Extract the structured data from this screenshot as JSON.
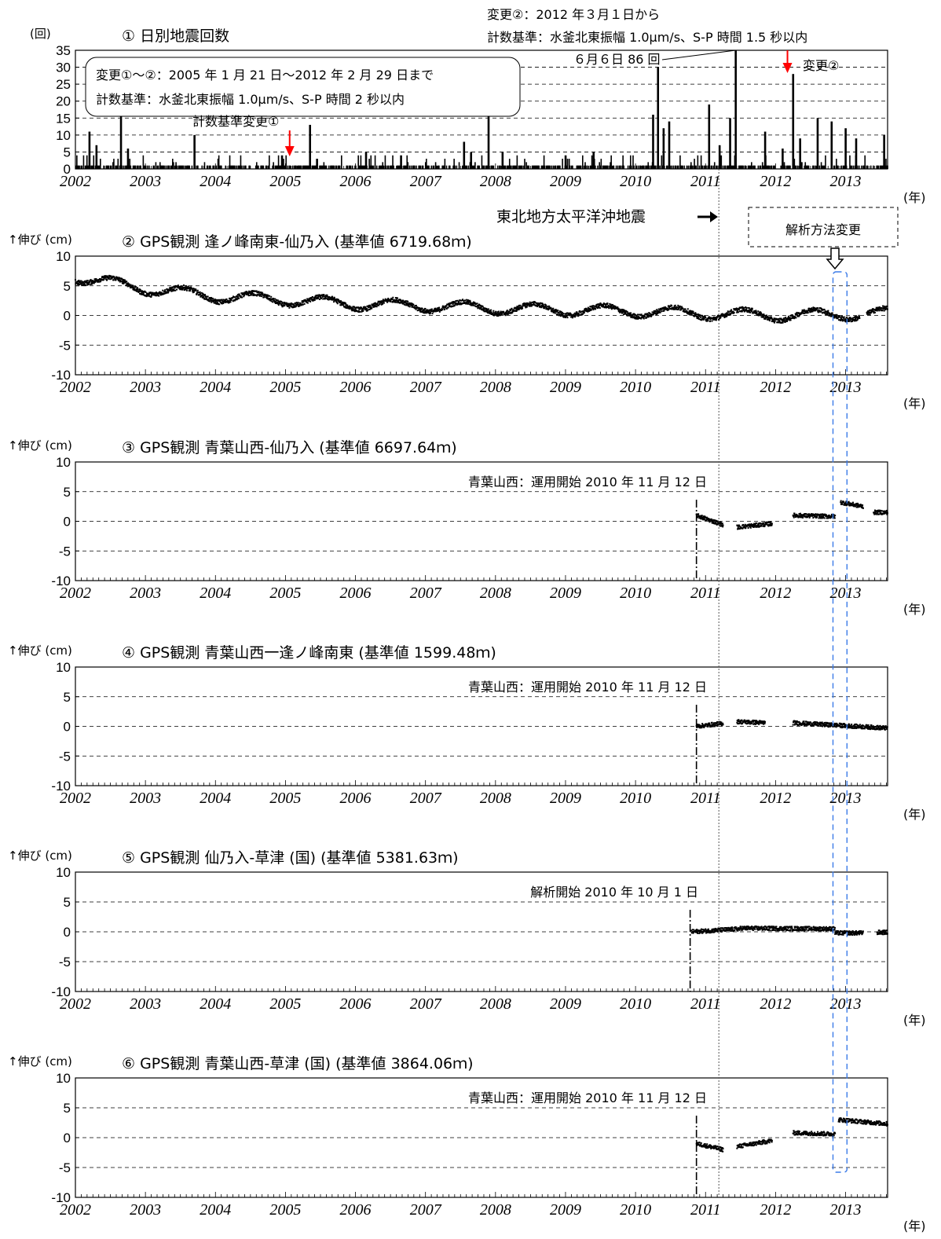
{
  "colors": {
    "axis": "#000000",
    "grid": "#000000",
    "data": "#000000",
    "arrow_red": "#ff0000",
    "analysis_box": "#3b7be8",
    "quake_line": "#555555"
  },
  "year_axis_label": "(年)",
  "quake_label": "東北地方太平洋沖地震",
  "analysis_change_label": "解析方法変更",
  "chart_data": [
    {
      "type": "bar",
      "title": "① 日別地震回数",
      "ylabel": "(回)",
      "xlim": [
        2002,
        2013.6
      ],
      "ylim": [
        0,
        35
      ],
      "yticks": [
        0,
        5,
        10,
        15,
        20,
        25,
        30,
        35
      ],
      "xticks": [
        2002,
        2003,
        2004,
        2005,
        2006,
        2007,
        2008,
        2009,
        2010,
        2011,
        2012,
        2013
      ],
      "baseline_count": 1,
      "spikes": [
        {
          "x": 2002.2,
          "y": 11
        },
        {
          "x": 2002.3,
          "y": 7
        },
        {
          "x": 2002.65,
          "y": 18
        },
        {
          "x": 2002.75,
          "y": 6
        },
        {
          "x": 2003.7,
          "y": 10
        },
        {
          "x": 2004.95,
          "y": 4
        },
        {
          "x": 2005.35,
          "y": 13
        },
        {
          "x": 2005.45,
          "y": 3
        },
        {
          "x": 2006.15,
          "y": 5
        },
        {
          "x": 2006.65,
          "y": 4
        },
        {
          "x": 2007.55,
          "y": 8
        },
        {
          "x": 2007.65,
          "y": 5
        },
        {
          "x": 2007.9,
          "y": 22
        },
        {
          "x": 2008.1,
          "y": 5
        },
        {
          "x": 2009.0,
          "y": 4
        },
        {
          "x": 2009.4,
          "y": 5
        },
        {
          "x": 2010.25,
          "y": 16
        },
        {
          "x": 2010.32,
          "y": 32
        },
        {
          "x": 2010.4,
          "y": 12
        },
        {
          "x": 2010.48,
          "y": 14
        },
        {
          "x": 2011.05,
          "y": 19
        },
        {
          "x": 2011.2,
          "y": 7
        },
        {
          "x": 2011.35,
          "y": 15
        },
        {
          "x": 2011.43,
          "y": 35
        },
        {
          "x": 2011.85,
          "y": 11
        },
        {
          "x": 2012.1,
          "y": 6
        },
        {
          "x": 2012.25,
          "y": 28
        },
        {
          "x": 2012.35,
          "y": 9
        },
        {
          "x": 2012.6,
          "y": 15
        },
        {
          "x": 2012.8,
          "y": 14
        },
        {
          "x": 2013.0,
          "y": 12
        },
        {
          "x": 2013.15,
          "y": 9
        },
        {
          "x": 2013.55,
          "y": 10
        }
      ],
      "annotations": {
        "box_line1": "変更①～②：2005 年 1 月 21 日～2012 年 2 月 29 日まで",
        "box_line2": "計数基準：水釜北東振幅 1.0μm/s、S-P 時間 2 秒以内",
        "change1_label": "計数基準変更①",
        "change1_x": 2005.06,
        "change2_label": "変更②",
        "change2_x": 2012.17,
        "top_line1": "変更②：2012 年３月１日から",
        "top_line2": "計数基準：水釜北東振幅 1.0μm/s、S-P 時間 1.5 秒以内",
        "peak_label": "６月６日 86 回",
        "peak_x": 2011.43
      }
    },
    {
      "type": "scatter",
      "title": "② GPS観測 逢ノ峰南東-仙乃入 (基準値 6719.68ｍ)",
      "ylabel": "↑伸び (cm)",
      "xlim": [
        2002,
        2013.6
      ],
      "ylim": [
        -10,
        10
      ],
      "yticks": [
        -10,
        -5,
        0,
        5,
        10
      ],
      "start": 2002.0,
      "end": 2013.6,
      "trend_points": [
        [
          2002.0,
          6.5
        ],
        [
          2003.0,
          4.5
        ],
        [
          2004.0,
          3.2
        ],
        [
          2005.0,
          2.6
        ],
        [
          2006.0,
          1.9
        ],
        [
          2007.0,
          1.6
        ],
        [
          2008.0,
          1.2
        ],
        [
          2009.0,
          0.9
        ],
        [
          2010.0,
          0.7
        ],
        [
          2011.0,
          0.3
        ],
        [
          2012.0,
          0.0
        ],
        [
          2013.6,
          0.3
        ]
      ],
      "seasonal_amplitude": 0.9,
      "gaps": [
        [
          2013.2,
          2013.3
        ]
      ],
      "annotation": "",
      "onset_x": null
    },
    {
      "type": "scatter",
      "title": "③ GPS観測 青葉山西-仙乃入 (基準値 6697.64ｍ)",
      "ylabel": "↑伸び (cm)",
      "xlim": [
        2002,
        2013.6
      ],
      "ylim": [
        -10,
        10
      ],
      "yticks": [
        -10,
        -5,
        0,
        5,
        10
      ],
      "segments": [
        {
          "from": 2010.87,
          "to": 2011.25,
          "y0": 1.0,
          "y1": -0.6
        },
        {
          "from": 2011.45,
          "to": 2011.95,
          "y0": -1.0,
          "y1": -0.4
        },
        {
          "from": 2012.25,
          "to": 2012.85,
          "y0": 1.0,
          "y1": 0.8
        },
        {
          "from": 2012.93,
          "to": 2013.25,
          "y0": 3.2,
          "y1": 2.5
        },
        {
          "from": 2013.4,
          "to": 2013.6,
          "y0": 1.5,
          "y1": 1.5
        }
      ],
      "annotation": "青葉山西：運用開始 2010 年 11 月 12 日",
      "onset_x": 2010.87
    },
    {
      "type": "scatter",
      "title": "④ GPS観測 青葉山西一逢ノ峰南東 (基準値 1599.48ｍ)",
      "ylabel": "↑伸び (cm)",
      "xlim": [
        2002,
        2013.6
      ],
      "ylim": [
        -10,
        10
      ],
      "yticks": [
        -10,
        -5,
        0,
        5,
        10
      ],
      "segments": [
        {
          "from": 2010.87,
          "to": 2011.25,
          "y0": 0.0,
          "y1": 0.5
        },
        {
          "from": 2011.45,
          "to": 2011.85,
          "y0": 0.8,
          "y1": 0.6
        },
        {
          "from": 2012.25,
          "to": 2013.6,
          "y0": 0.6,
          "y1": -0.3
        }
      ],
      "annotation": "青葉山西：運用開始 2010 年 11 月 12 日",
      "onset_x": 2010.87
    },
    {
      "type": "scatter",
      "title": "⑤ GPS観測 仙乃入-草津 (国) (基準値 5381.63ｍ)",
      "ylabel": "↑伸び (cm)",
      "xlim": [
        2002,
        2013.6
      ],
      "ylim": [
        -10,
        10
      ],
      "yticks": [
        -10,
        -5,
        0,
        5,
        10
      ],
      "segments": [
        {
          "from": 2010.8,
          "to": 2011.5,
          "y0": 0.0,
          "y1": 0.5
        },
        {
          "from": 2011.5,
          "to": 2012.85,
          "y0": 0.6,
          "y1": 0.5
        },
        {
          "from": 2012.85,
          "to": 2013.25,
          "y0": -0.2,
          "y1": -0.2
        },
        {
          "from": 2013.45,
          "to": 2013.6,
          "y0": -0.1,
          "y1": -0.1
        }
      ],
      "annotation": "解析開始 2010 年 10 月 1 日",
      "onset_x": 2010.78
    },
    {
      "type": "scatter",
      "title": "⑥ GPS観測 青葉山西-草津 (国) (基準値 3864.06ｍ)",
      "ylabel": "↑伸び (cm)",
      "xlim": [
        2002,
        2013.6
      ],
      "ylim": [
        -10,
        10
      ],
      "yticks": [
        -10,
        -5,
        0,
        5,
        10
      ],
      "segments": [
        {
          "from": 2010.87,
          "to": 2011.25,
          "y0": -1.0,
          "y1": -2.0
        },
        {
          "from": 2011.45,
          "to": 2011.95,
          "y0": -1.5,
          "y1": -0.5
        },
        {
          "from": 2012.25,
          "to": 2012.85,
          "y0": 0.8,
          "y1": 0.6
        },
        {
          "from": 2012.9,
          "to": 2013.6,
          "y0": 3.0,
          "y1": 2.3
        }
      ],
      "annotation": "青葉山西：運用開始 2010 年 11 月 12 日",
      "onset_x": 2010.87
    }
  ],
  "events": {
    "tohoku_quake_x": 2011.19,
    "analysis_change_x0": 2012.82,
    "analysis_change_x1": 2013.02
  }
}
